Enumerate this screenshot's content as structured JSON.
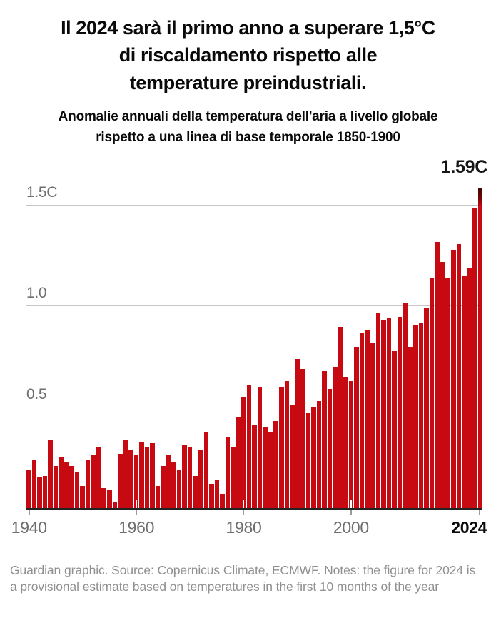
{
  "header": {
    "title_lines": [
      "Il 2024 sarà il primo anno a superare 1,5°C",
      "di riscaldamento rispetto alle",
      "temperature preindustriali."
    ],
    "subtitle_lines": [
      "Anomalie annuali della temperatura dell'aria a livello globale",
      "rispetto a una linea di base temporale 1850-1900"
    ]
  },
  "chart_data": {
    "type": "bar",
    "title": "Il 2024 sarà il primo anno a superare 1,5°C di riscaldamento rispetto alle temperature preindustriali.",
    "subtitle": "Anomalie annuali della temperatura dell'aria a livello globale rispetto a una linea di base temporale 1850-1900",
    "unit": "C",
    "start_year": 1940,
    "end_year": 2024,
    "ylim": [
      0,
      1.7
    ],
    "grid": true,
    "values": [
      0.19,
      0.24,
      0.15,
      0.16,
      0.34,
      0.21,
      0.25,
      0.23,
      0.21,
      0.18,
      0.11,
      0.24,
      0.26,
      0.3,
      0.1,
      0.09,
      0.03,
      0.27,
      0.34,
      0.29,
      0.26,
      0.33,
      0.3,
      0.32,
      0.11,
      0.21,
      0.26,
      0.23,
      0.19,
      0.31,
      0.3,
      0.16,
      0.29,
      0.38,
      0.12,
      0.14,
      0.07,
      0.35,
      0.3,
      0.45,
      0.55,
      0.61,
      0.41,
      0.6,
      0.4,
      0.38,
      0.43,
      0.6,
      0.63,
      0.51,
      0.74,
      0.69,
      0.47,
      0.5,
      0.53,
      0.68,
      0.59,
      0.7,
      0.9,
      0.65,
      0.63,
      0.8,
      0.87,
      0.88,
      0.82,
      0.97,
      0.93,
      0.94,
      0.78,
      0.95,
      1.02,
      0.8,
      0.91,
      0.92,
      0.99,
      1.14,
      1.32,
      1.22,
      1.14,
      1.28,
      1.31,
      1.15,
      1.19,
      1.49,
      1.59
    ],
    "annotation": {
      "text": "1.59C",
      "year": 2024,
      "value": 1.59
    },
    "y_gridlines": [
      {
        "value": 0.5,
        "label": "0.5"
      },
      {
        "value": 1.0,
        "label": "1.0"
      },
      {
        "value": 1.5,
        "label": "1.5C"
      }
    ],
    "x_ticks": [
      {
        "year": 1940,
        "label": "1940",
        "bold": false,
        "notch": false
      },
      {
        "year": 1960,
        "label": "1960",
        "bold": false,
        "notch": true
      },
      {
        "year": 1980,
        "label": "1980",
        "bold": false,
        "notch": true
      },
      {
        "year": 2000,
        "label": "2000",
        "bold": false,
        "notch": true
      },
      {
        "year": 2024,
        "label": "2024",
        "bold": true,
        "notch": false
      }
    ],
    "bar_color": "#c70a11",
    "final_bar_cap_color": "#470404",
    "grid_color": "#c6c6c6",
    "baseline_color": "#232323",
    "axis_label_color": "#6e6e6e"
  },
  "footer": {
    "credit": "Guardian graphic. Source: Copernicus Climate, ECMWF. Notes: the figure for 2024 is a provisional estimate based on temperatures in the first 10 months of the year"
  }
}
